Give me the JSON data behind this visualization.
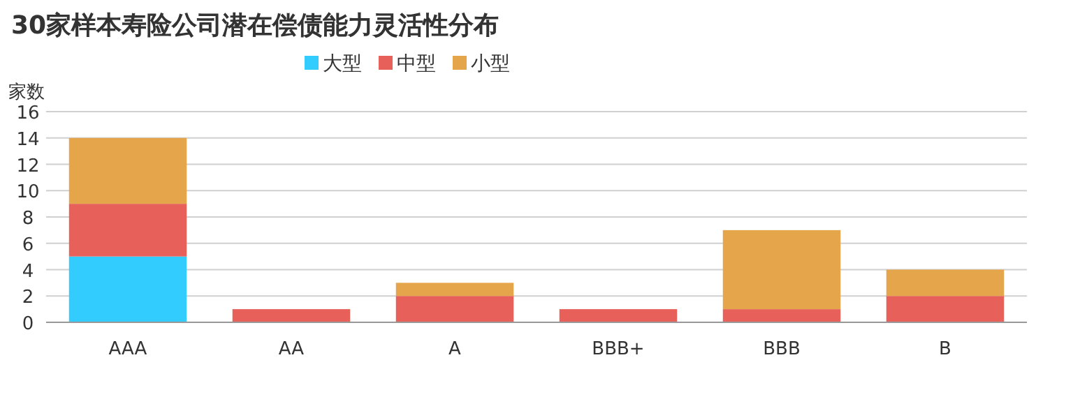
{
  "chart_data": {
    "type": "bar",
    "title": "30家样本寿险公司潜在偿债能力灵活性分布",
    "ylabel": "家数",
    "categories": [
      "AAA",
      "AA",
      "A",
      "BBB+",
      "BBB",
      "B"
    ],
    "stacked": true,
    "series": [
      {
        "name": "大型",
        "color": "#33ccff",
        "values": [
          5,
          0,
          0,
          0,
          0,
          0
        ]
      },
      {
        "name": "中型",
        "color": "#e8605a",
        "values": [
          4,
          1,
          2,
          1,
          1,
          2
        ]
      },
      {
        "name": "小型",
        "color": "#e5a54b",
        "values": [
          5,
          0,
          1,
          0,
          6,
          2
        ]
      }
    ],
    "ylim": [
      0,
      16
    ],
    "yticks": [
      0,
      2,
      4,
      6,
      8,
      10,
      12,
      14,
      16
    ],
    "grid": "y",
    "legend": "top"
  }
}
